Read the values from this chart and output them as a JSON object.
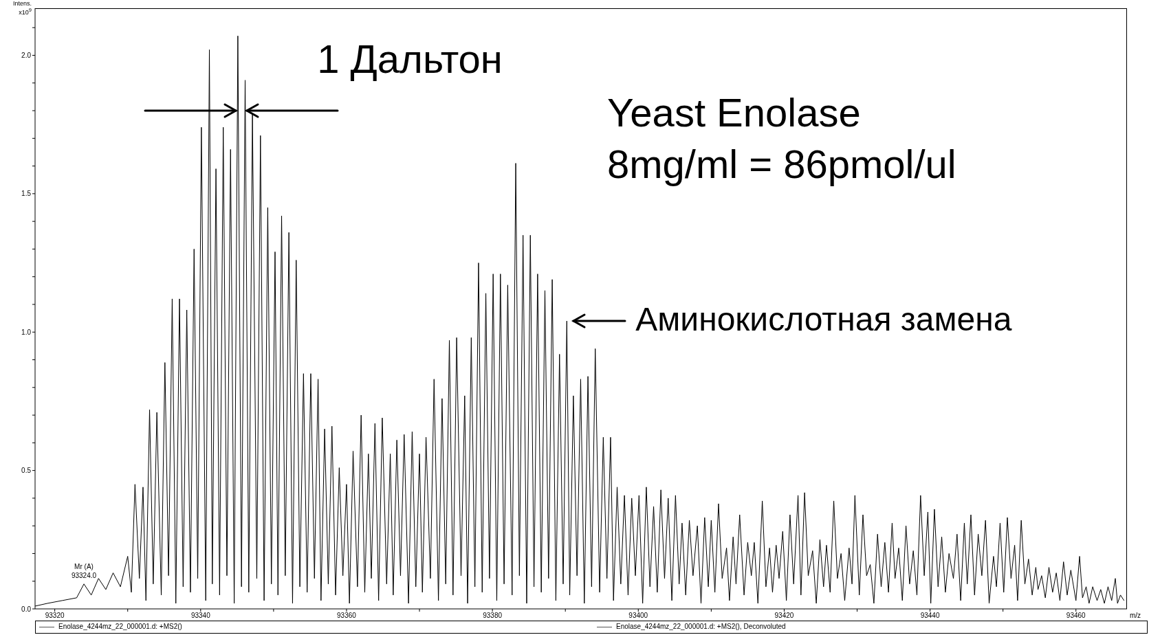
{
  "chart_data": {
    "type": "line",
    "title": "Yeast Enolase",
    "subtitle": "8mg/ml = 86pmol/ul",
    "xlabel": "m/z",
    "ylabel": "Intens. x10$^{9}$",
    "xlim": [
      93317.3,
      93467
    ],
    "xticks": [
      93320,
      {
        "value": 93330,
        "label": null
      },
      93340,
      {
        "value": 93350,
        "label": null
      },
      93360,
      {
        "value": 93370,
        "label": null
      },
      93380,
      {
        "value": 93390,
        "label": null
      },
      93400,
      {
        "value": 93410,
        "label": null
      },
      93420,
      {
        "value": 93430,
        "label": null
      },
      93440,
      {
        "value": 93450,
        "label": null
      },
      93460
    ],
    "ylim": [
      0,
      2.17
    ],
    "yticks": [
      {
        "value": 0,
        "label": "0.0"
      },
      {
        "value": 0.1,
        "label": null
      },
      {
        "value": 0.2,
        "label": null
      },
      {
        "value": 0.3,
        "label": null
      },
      {
        "value": 0.4,
        "label": null
      },
      {
        "value": 0.5,
        "label": "0.5"
      },
      {
        "value": 0.6,
        "label": null
      },
      {
        "value": 0.7,
        "label": null
      },
      {
        "value": 0.8,
        "label": null
      },
      {
        "value": 0.9,
        "label": null
      },
      {
        "value": 1,
        "label": "1.0"
      },
      {
        "value": 1.1,
        "label": null
      },
      {
        "value": 1.2,
        "label": null
      },
      {
        "value": 1.3,
        "label": null
      },
      {
        "value": 1.4,
        "label": null
      },
      {
        "value": 1.5,
        "label": "1.5"
      },
      {
        "value": 1.6,
        "label": null
      },
      {
        "value": 1.7,
        "label": null
      },
      {
        "value": 1.8,
        "label": null
      },
      {
        "value": 1.9,
        "label": null
      },
      {
        "value": 2,
        "label": "2.0"
      },
      {
        "value": 2.1,
        "label": null
      }
    ],
    "marker": "none",
    "line_style": "solid",
    "annotations": [
      {
        "text": "1 Дальтон",
        "x": 93345.6,
        "y": 1.8
      },
      {
        "text": "Аминокислотная замена",
        "x": 93390.2,
        "y": 1.04
      },
      "Mr (A)\n93324.0",
      "Enolase_4244mz_22_000001.d: +MS2()",
      "Enolase_4244mz_22_000001.d: +MS2(), Deconvoluted"
    ],
    "series": [
      {
        "color": "#000000",
        "x": [
          93317.3,
          93319,
          93321,
          93323,
          93324,
          93325,
          93326,
          93327,
          93328,
          93329,
          93330,
          93330.5,
          93331.0,
          93331.6,
          93332.1,
          93332.5,
          93333.0,
          93333.5,
          93334.0,
          93334.6,
          93335.1,
          93335.6,
          93336.1,
          93336.6,
          93337.1,
          93337.6,
          93338.1,
          93338.6,
          93339.1,
          93339.6,
          93340.1,
          93340.7,
          93341.2,
          93341.6,
          93342.1,
          93342.6,
          93343.1,
          93343.6,
          93344.1,
          93344.6,
          93345.1,
          93345.6,
          93346.1,
          93346.6,
          93347.1,
          93347.7,
          93348.2,
          93348.7,
          93349.2,
          93349.7,
          93350.2,
          93350.6,
          93351.1,
          93351.6,
          93352.1,
          93352.6,
          93353.1,
          93353.6,
          93354.1,
          93354.6,
          93355.1,
          93355.6,
          93356.1,
          93356.5,
          93357.0,
          93357.5,
          93358.0,
          93358.5,
          93359.0,
          93359.5,
          93360.0,
          93360.4,
          93360.9,
          93361.5,
          93362.0,
          93362.5,
          93363.0,
          93363.4,
          93363.9,
          93364.4,
          93364.9,
          93365.5,
          93366.0,
          93366.4,
          93366.9,
          93367.4,
          93367.9,
          93368.5,
          93369.0,
          93369.5,
          93370.0,
          93370.4,
          93370.9,
          93371.5,
          93372.0,
          93372.6,
          93373.1,
          93373.6,
          93374.1,
          93374.6,
          93375.1,
          93375.7,
          93376.2,
          93376.6,
          93377.1,
          93377.6,
          93378.1,
          93378.6,
          93379.1,
          93379.6,
          93380.1,
          93380.6,
          93381.1,
          93381.6,
          93382.1,
          93382.7,
          93383.2,
          93383.7,
          93384.2,
          93384.7,
          93385.2,
          93385.7,
          93386.2,
          93386.7,
          93387.2,
          93387.7,
          93388.2,
          93388.7,
          93389.2,
          93389.7,
          93390.2,
          93390.6,
          93391.1,
          93391.6,
          93392.1,
          93392.6,
          93393.1,
          93393.6,
          93394.1,
          93394.7,
          93395.2,
          93395.7,
          93396.2,
          93396.6,
          93397.1,
          93397.6,
          93398.1,
          93398.6,
          93399.1,
          93399.6,
          93400.1,
          93400.6,
          93401.1,
          93401.6,
          93402.1,
          93402.6,
          93403.1,
          93403.6,
          93404.1,
          93404.6,
          93405.1,
          93405.6,
          93406.0,
          93406.5,
          93407.0,
          93407.5,
          93408.1,
          93408.6,
          93409.1,
          93409.6,
          93410.0,
          93410.5,
          93411.0,
          93411.5,
          93412.1,
          93412.5,
          93413.0,
          93413.4,
          93413.9,
          93414.5,
          93415.0,
          93415.5,
          93415.9,
          93416.4,
          93417.0,
          93417.5,
          93418.0,
          93418.4,
          93418.9,
          93419.3,
          93419.8,
          93420.3,
          93420.8,
          93421.3,
          93421.9,
          93422.3,
          93422.8,
          93423.3,
          93423.9,
          93424.4,
          93424.9,
          93425.4,
          93425.8,
          93426.3,
          93426.8,
          93427.3,
          93427.8,
          93428.3,
          93428.9,
          93429.3,
          93429.7,
          93430.3,
          93430.8,
          93431.3,
          93431.8,
          93432.3,
          93432.8,
          93433.3,
          93433.8,
          93434.3,
          93434.8,
          93435.2,
          93435.7,
          93436.2,
          93436.7,
          93437.2,
          93437.7,
          93438.2,
          93438.7,
          93439.2,
          93439.7,
          93440.1,
          93440.6,
          93441.1,
          93441.6,
          93442.1,
          93442.6,
          93443.2,
          93443.7,
          93444.2,
          93444.7,
          93445.1,
          93445.6,
          93446.1,
          93446.6,
          93447.1,
          93447.6,
          93448.1,
          93448.7,
          93449.1,
          93449.6,
          93450.1,
          93450.6,
          93451.1,
          93451.6,
          93452.0,
          93452.5,
          93453.0,
          93453.5,
          93454.0,
          93454.5,
          93454.8,
          93455.3,
          93455.8,
          93456.3,
          93456.8,
          93457.3,
          93457.8,
          93458.3,
          93458.8,
          93459.3,
          93460.0,
          93460.5,
          93460.9,
          93461.4,
          93461.8,
          93462.3,
          93462.9,
          93463.4,
          93463.9,
          93464.4,
          93464.9,
          93465.4,
          93465.7,
          93466.1,
          93466.6
        ],
        "values": [
          0.01,
          0.02,
          0.03,
          0.04,
          0.09,
          0.05,
          0.11,
          0.07,
          0.13,
          0.08,
          0.19,
          0.06,
          0.45,
          0.11,
          0.44,
          0.03,
          0.72,
          0.09,
          0.71,
          0.05,
          0.89,
          0.12,
          1.12,
          0.02,
          1.12,
          0.08,
          1.08,
          0.06,
          1.3,
          0.11,
          1.74,
          0.03,
          2.02,
          0.09,
          1.59,
          0.05,
          1.74,
          0.12,
          1.66,
          0.02,
          2.07,
          0.08,
          1.91,
          0.06,
          1.79,
          0.11,
          1.71,
          0.03,
          1.45,
          0.09,
          1.29,
          0.05,
          1.42,
          0.12,
          1.36,
          0.02,
          1.26,
          0.08,
          0.85,
          0.06,
          0.85,
          0.11,
          0.83,
          0.03,
          0.65,
          0.09,
          0.66,
          0.05,
          0.51,
          0.12,
          0.45,
          0.02,
          0.57,
          0.08,
          0.7,
          0.06,
          0.56,
          0.11,
          0.67,
          0.03,
          0.69,
          0.09,
          0.56,
          0.05,
          0.61,
          0.12,
          0.63,
          0.02,
          0.64,
          0.08,
          0.56,
          0.06,
          0.62,
          0.11,
          0.83,
          0.03,
          0.76,
          0.09,
          0.97,
          0.05,
          0.98,
          0.12,
          0.77,
          0.02,
          0.98,
          0.08,
          1.25,
          0.06,
          1.14,
          0.11,
          1.21,
          0.03,
          1.21,
          0.09,
          1.17,
          0.05,
          1.61,
          0.12,
          1.35,
          0.02,
          1.35,
          0.08,
          1.21,
          0.06,
          1.15,
          0.11,
          1.19,
          0.03,
          0.92,
          0.09,
          1.04,
          0.05,
          0.77,
          0.12,
          0.83,
          0.02,
          0.84,
          0.08,
          0.94,
          0.06,
          0.62,
          0.11,
          0.62,
          0.03,
          0.44,
          0.09,
          0.41,
          0.05,
          0.4,
          0.12,
          0.41,
          0.02,
          0.44,
          0.08,
          0.37,
          0.06,
          0.43,
          0.11,
          0.4,
          0.03,
          0.41,
          0.09,
          0.31,
          0.05,
          0.32,
          0.12,
          0.3,
          0.02,
          0.33,
          0.08,
          0.32,
          0.06,
          0.38,
          0.11,
          0.22,
          0.03,
          0.26,
          0.09,
          0.34,
          0.05,
          0.24,
          0.12,
          0.24,
          0.02,
          0.39,
          0.08,
          0.22,
          0.06,
          0.23,
          0.11,
          0.28,
          0.03,
          0.34,
          0.09,
          0.41,
          0.05,
          0.42,
          0.12,
          0.21,
          0.02,
          0.25,
          0.08,
          0.23,
          0.06,
          0.39,
          0.11,
          0.2,
          0.03,
          0.22,
          0.09,
          0.41,
          0.05,
          0.34,
          0.12,
          0.16,
          0.02,
          0.27,
          0.08,
          0.24,
          0.06,
          0.31,
          0.11,
          0.22,
          0.03,
          0.3,
          0.09,
          0.21,
          0.05,
          0.41,
          0.12,
          0.35,
          0.02,
          0.36,
          0.08,
          0.26,
          0.06,
          0.2,
          0.11,
          0.27,
          0.03,
          0.31,
          0.09,
          0.34,
          0.05,
          0.27,
          0.12,
          0.32,
          0.02,
          0.19,
          0.08,
          0.31,
          0.06,
          0.33,
          0.11,
          0.23,
          0.03,
          0.32,
          0.09,
          0.18,
          0.05,
          0.15,
          0.07,
          0.12,
          0.04,
          0.15,
          0.06,
          0.13,
          0.03,
          0.17,
          0.05,
          0.14,
          0.03,
          0.19,
          0.04,
          0.08,
          0.02,
          0.08,
          0.03,
          0.07,
          0.02,
          0.08,
          0.03,
          0.11,
          0.02,
          0.05,
          0.03
        ]
      }
    ]
  }
}
